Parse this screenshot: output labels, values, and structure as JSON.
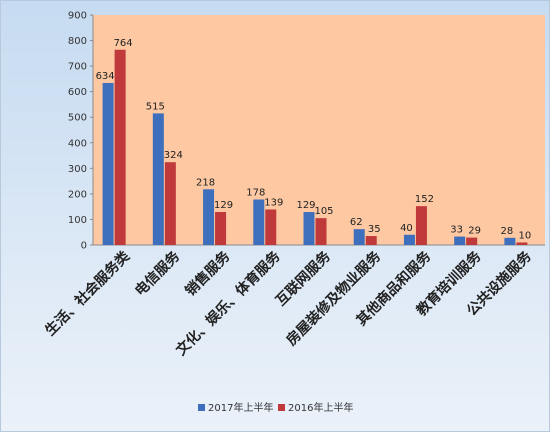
{
  "chart_data": {
    "type": "bar",
    "categories": [
      "生活、社会服务类",
      "电信服务",
      "销售服务",
      "文化、娱乐、体育服务",
      "互联网服务",
      "房屋装修及物业服务",
      "其他商品和服务",
      "教育培训服务",
      "公共设施服务"
    ],
    "series": [
      {
        "name": "2017年上半年",
        "color": "#3e6fbd",
        "values": [
          634,
          515,
          218,
          178,
          129,
          62,
          40,
          33,
          28
        ]
      },
      {
        "name": "2016年上半年",
        "color": "#c0393b",
        "values": [
          764,
          324,
          129,
          139,
          105,
          35,
          152,
          29,
          10
        ]
      }
    ],
    "yticks": [
      0,
      100,
      200,
      300,
      400,
      500,
      600,
      700,
      800,
      900
    ],
    "ylim": [
      0,
      900
    ],
    "grid": false,
    "legend_position": "bottom",
    "plot_background": "#fdc8a2"
  }
}
